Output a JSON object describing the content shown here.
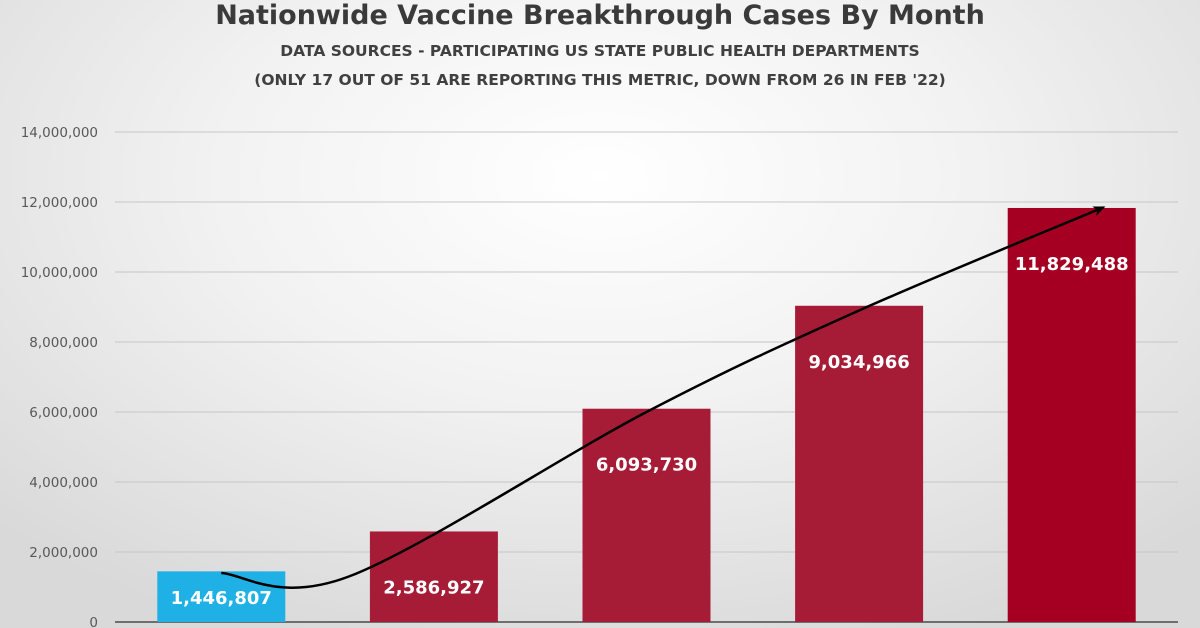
{
  "chart_data": {
    "type": "bar",
    "title": "Nationwide Vaccine Breakthrough Cases By Month",
    "subtitle_lines": [
      "DATA SOURCES - PARTICIPATING US STATE PUBLIC HEALTH DEPARTMENTS",
      "(ONLY 17 OUT OF 51  ARE REPORTING THIS METRIC, DOWN FROM 26 IN FEB '22)"
    ],
    "categories": [
      "",
      "",
      "",
      "",
      ""
    ],
    "values": [
      1446807,
      2586927,
      6093730,
      9034966,
      11829488
    ],
    "data_labels": [
      "1,446,807",
      "2,586,927",
      "6,093,730",
      "9,034,966",
      "11,829,488"
    ],
    "bar_colors": [
      "#1fb0e6",
      "#a61c36",
      "#a61c36",
      "#a61c36",
      "#a50021"
    ],
    "ylim": [
      0,
      14000000
    ],
    "yticks": [
      0,
      2000000,
      4000000,
      6000000,
      8000000,
      10000000,
      12000000,
      14000000
    ],
    "ytick_labels": [
      "0",
      "2,000,000",
      "4,000,000",
      "6,000,000",
      "8,000,000",
      "10,000,000",
      "12,000,000",
      "14,000,000"
    ],
    "grid": true,
    "legend": "none",
    "trend_arrow": {
      "color": "#000000",
      "points_data": [
        [
          0,
          1400000
        ],
        [
          0.6,
          1300000
        ],
        [
          2.0,
          6000000
        ],
        [
          3.0,
          8900000
        ],
        [
          4.15,
          11850000
        ]
      ]
    }
  }
}
